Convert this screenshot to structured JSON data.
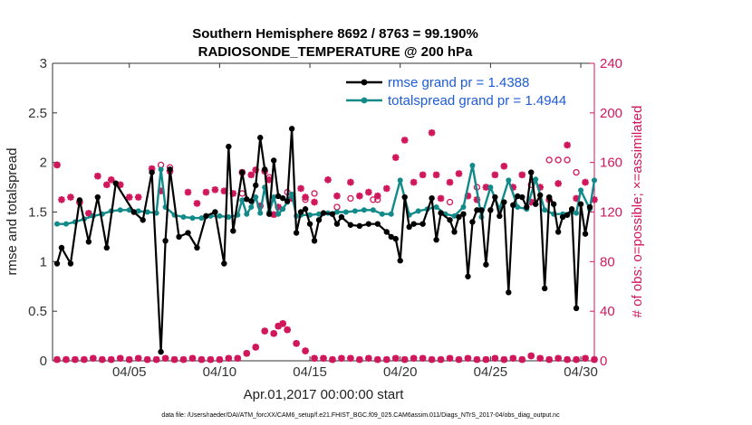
{
  "chart_data": {
    "type": "line",
    "title_line1": "Southern Hemisphere 8692 / 8763 = 99.190%",
    "title_line2": "RADIOSONDE_TEMPERATURE @ 200 hPa",
    "xlabel": "Apr.01,2017 00:00:00 start",
    "ylabel_left": "rmse and totalspread",
    "ylabel_right": "# of obs: o=possible; ×=assimilated",
    "footnote": "data file: /Users/raeder/DAI/ATM_forcXX/CAM6_setup/f.e21.FHIST_BGC.f09_025.CAM6assim.011/Diags_NTrS_2017-04/obs_diag_output.nc",
    "xlim": [
      0.75,
      30.75
    ],
    "ylim_left": [
      0,
      3
    ],
    "ylim_right": [
      0,
      240
    ],
    "x_ticks": [
      {
        "value": 5,
        "label": "04/05"
      },
      {
        "value": 10,
        "label": "04/10"
      },
      {
        "value": 15,
        "label": "04/15"
      },
      {
        "value": 20,
        "label": "04/20"
      },
      {
        "value": 25,
        "label": "04/25"
      },
      {
        "value": 30,
        "label": "04/30"
      }
    ],
    "y_ticks_left": [
      {
        "value": 0,
        "label": "0"
      },
      {
        "value": 0.5,
        "label": "0.5"
      },
      {
        "value": 1,
        "label": "1"
      },
      {
        "value": 1.5,
        "label": "1.5"
      },
      {
        "value": 2,
        "label": "2"
      },
      {
        "value": 2.5,
        "label": "2.5"
      },
      {
        "value": 3,
        "label": "3"
      }
    ],
    "y_ticks_right": [
      {
        "value": 0,
        "label": "0"
      },
      {
        "value": 40,
        "label": "40"
      },
      {
        "value": 80,
        "label": "80"
      },
      {
        "value": 120,
        "label": "120"
      },
      {
        "value": 160,
        "label": "160"
      },
      {
        "value": 200,
        "label": "200"
      },
      {
        "value": 240,
        "label": "240"
      }
    ],
    "colors": {
      "rmse": "#000000",
      "spread": "#138a8a",
      "obs": "#d0175c",
      "legend_text": "#1f5bd6"
    },
    "legend": [
      {
        "series": "rmse",
        "label": "rmse grand pr = 1.4388"
      },
      {
        "series": "spread",
        "label": "totalspread grand pr = 1.4944"
      }
    ],
    "series": [
      {
        "name": "rmse",
        "points": [
          [
            1.0,
            0.98
          ],
          [
            1.25,
            1.14
          ],
          [
            1.75,
            0.98
          ],
          [
            2.25,
            1.62
          ],
          [
            2.75,
            1.2
          ],
          [
            3.25,
            1.65
          ],
          [
            3.75,
            1.14
          ],
          [
            4.25,
            1.79
          ],
          [
            5.25,
            1.5
          ],
          [
            5.75,
            1.42
          ],
          [
            6.25,
            1.9
          ],
          [
            6.75,
            0.09
          ],
          [
            7.0,
            1.21
          ],
          [
            7.25,
            1.93
          ],
          [
            7.75,
            1.25
          ],
          [
            8.25,
            1.29
          ],
          [
            8.75,
            1.14
          ],
          [
            9.25,
            1.46
          ],
          [
            9.75,
            1.5
          ],
          [
            10.25,
            0.98
          ],
          [
            10.5,
            2.16
          ],
          [
            10.75,
            1.31
          ],
          [
            11.25,
            1.9
          ],
          [
            11.5,
            1.63
          ],
          [
            11.75,
            1.61
          ],
          [
            12.0,
            1.77
          ],
          [
            12.25,
            2.25
          ],
          [
            12.5,
            1.93
          ],
          [
            12.75,
            1.48
          ],
          [
            13.0,
            2.02
          ],
          [
            13.25,
            1.66
          ],
          [
            13.5,
            1.64
          ],
          [
            13.75,
            1.61
          ],
          [
            14.0,
            2.34
          ],
          [
            14.25,
            1.29
          ],
          [
            14.5,
            1.5
          ],
          [
            14.75,
            1.53
          ],
          [
            15.0,
            1.38
          ],
          [
            15.25,
            1.21
          ],
          [
            15.5,
            1.42
          ],
          [
            15.75,
            1.49
          ],
          [
            16.25,
            1.48
          ],
          [
            16.5,
            1.38
          ],
          [
            16.75,
            1.45
          ],
          [
            17.25,
            1.37
          ],
          [
            17.75,
            1.36
          ],
          [
            18.25,
            1.38
          ],
          [
            18.75,
            1.38
          ],
          [
            19.25,
            1.3
          ],
          [
            19.5,
            1.25
          ],
          [
            19.75,
            1.23
          ],
          [
            20.0,
            1.01
          ],
          [
            20.25,
            1.65
          ],
          [
            20.5,
            1.35
          ],
          [
            20.75,
            1.38
          ],
          [
            21.25,
            1.38
          ],
          [
            21.75,
            1.64
          ],
          [
            22.0,
            1.22
          ],
          [
            22.25,
            1.49
          ],
          [
            22.75,
            1.42
          ],
          [
            23.0,
            1.3
          ],
          [
            23.25,
            1.45
          ],
          [
            23.5,
            1.48
          ],
          [
            23.75,
            0.85
          ],
          [
            24.0,
            1.4
          ],
          [
            24.25,
            1.52
          ],
          [
            24.5,
            1.52
          ],
          [
            24.75,
            0.97
          ],
          [
            25.0,
            1.52
          ],
          [
            25.25,
            1.65
          ],
          [
            25.5,
            1.46
          ],
          [
            25.75,
            1.6
          ],
          [
            26.0,
            0.69
          ],
          [
            26.25,
            1.57
          ],
          [
            26.5,
            1.66
          ],
          [
            26.75,
            1.65
          ],
          [
            27.0,
            1.55
          ],
          [
            27.25,
            1.9
          ],
          [
            27.5,
            1.58
          ],
          [
            27.75,
            1.67
          ],
          [
            28.0,
            0.73
          ],
          [
            28.25,
            1.65
          ],
          [
            28.5,
            1.58
          ],
          [
            28.75,
            1.3
          ],
          [
            29.0,
            1.45
          ],
          [
            29.25,
            1.47
          ],
          [
            29.5,
            1.53
          ],
          [
            29.75,
            0.53
          ],
          [
            30.0,
            1.58
          ],
          [
            30.25,
            1.28
          ],
          [
            30.5,
            1.55
          ]
        ]
      },
      {
        "name": "totalspread",
        "points": [
          [
            1.0,
            1.38
          ],
          [
            1.5,
            1.38
          ],
          [
            2.0,
            1.4
          ],
          [
            2.5,
            1.43
          ],
          [
            3.0,
            1.46
          ],
          [
            3.5,
            1.48
          ],
          [
            4.0,
            1.51
          ],
          [
            4.5,
            1.52
          ],
          [
            5.0,
            1.52
          ],
          [
            5.5,
            1.51
          ],
          [
            6.0,
            1.5
          ],
          [
            6.5,
            1.49
          ],
          [
            6.75,
            1.93
          ],
          [
            7.0,
            1.55
          ],
          [
            7.5,
            1.47
          ],
          [
            8.0,
            1.45
          ],
          [
            8.5,
            1.44
          ],
          [
            9.0,
            1.44
          ],
          [
            9.5,
            1.46
          ],
          [
            10.0,
            1.46
          ],
          [
            10.5,
            1.45
          ],
          [
            11.0,
            1.47
          ],
          [
            11.25,
            1.62
          ],
          [
            11.5,
            1.48
          ],
          [
            11.75,
            1.55
          ],
          [
            12.0,
            1.65
          ],
          [
            12.25,
            1.49
          ],
          [
            12.5,
            1.75
          ],
          [
            12.75,
            1.5
          ],
          [
            13.0,
            1.65
          ],
          [
            13.25,
            1.48
          ],
          [
            13.5,
            1.53
          ],
          [
            13.75,
            1.6
          ],
          [
            14.0,
            1.68
          ],
          [
            14.25,
            1.46
          ],
          [
            14.5,
            1.47
          ],
          [
            15.0,
            1.47
          ],
          [
            15.5,
            1.48
          ],
          [
            16.0,
            1.49
          ],
          [
            16.5,
            1.5
          ],
          [
            17.0,
            1.5
          ],
          [
            17.5,
            1.51
          ],
          [
            18.0,
            1.52
          ],
          [
            18.5,
            1.52
          ],
          [
            19.0,
            1.48
          ],
          [
            19.5,
            1.48
          ],
          [
            20.0,
            1.82
          ],
          [
            20.5,
            1.47
          ],
          [
            21.0,
            1.51
          ],
          [
            21.5,
            1.53
          ],
          [
            22.0,
            1.55
          ],
          [
            22.5,
            1.48
          ],
          [
            23.0,
            1.46
          ],
          [
            23.5,
            1.55
          ],
          [
            24.0,
            1.97
          ],
          [
            24.5,
            1.45
          ],
          [
            25.0,
            1.75
          ],
          [
            25.5,
            1.53
          ],
          [
            26.0,
            1.82
          ],
          [
            26.5,
            1.55
          ],
          [
            27.0,
            1.53
          ],
          [
            27.5,
            1.83
          ],
          [
            28.0,
            1.52
          ],
          [
            28.5,
            1.48
          ],
          [
            29.0,
            1.48
          ],
          [
            29.5,
            1.5
          ],
          [
            29.75,
            1.49
          ],
          [
            30.0,
            1.72
          ],
          [
            30.5,
            1.53
          ],
          [
            30.75,
            1.82
          ]
        ]
      }
    ],
    "obs_possible_top": [
      [
        1.0,
        158
      ],
      [
        2.25,
        128
      ],
      [
        6.75,
        158
      ],
      [
        7.25,
        156
      ],
      [
        11.25,
        135
      ],
      [
        12.75,
        148
      ],
      [
        13.75,
        136
      ],
      [
        14.75,
        130
      ],
      [
        15.25,
        135
      ],
      [
        16.5,
        124
      ],
      [
        17.25,
        131
      ],
      [
        18.5,
        130
      ],
      [
        18.75,
        130
      ],
      [
        22.75,
        128
      ],
      [
        24.25,
        140
      ],
      [
        27.25,
        142
      ],
      [
        28.25,
        162
      ],
      [
        28.75,
        162
      ],
      [
        29.25,
        162
      ],
      [
        29.75,
        152
      ]
    ],
    "obs_assim_top": [
      [
        1.0,
        158
      ],
      [
        1.25,
        130
      ],
      [
        1.75,
        132
      ],
      [
        2.25,
        128
      ],
      [
        2.75,
        119
      ],
      [
        3.25,
        149
      ],
      [
        3.75,
        142
      ],
      [
        4.0,
        146
      ],
      [
        4.5,
        142
      ],
      [
        5.0,
        132
      ],
      [
        5.5,
        132
      ],
      [
        6.25,
        155
      ],
      [
        6.75,
        137
      ],
      [
        7.25,
        153
      ],
      [
        8.25,
        136
      ],
      [
        8.75,
        127
      ],
      [
        9.25,
        136
      ],
      [
        9.75,
        138
      ],
      [
        10.25,
        137
      ],
      [
        10.75,
        135
      ],
      [
        11.25,
        152
      ],
      [
        11.75,
        150
      ],
      [
        12.0,
        154
      ],
      [
        12.25,
        125
      ],
      [
        12.5,
        153
      ],
      [
        12.75,
        146
      ],
      [
        13.0,
        118
      ],
      [
        13.25,
        124
      ],
      [
        14.0,
        131
      ],
      [
        14.5,
        139
      ],
      [
        14.75,
        132
      ],
      [
        15.25,
        128
      ],
      [
        16.0,
        146
      ],
      [
        16.5,
        133
      ],
      [
        17.25,
        144
      ],
      [
        17.75,
        133
      ],
      [
        18.25,
        136
      ],
      [
        18.75,
        133
      ],
      [
        19.25,
        139
      ],
      [
        19.75,
        164
      ],
      [
        20.25,
        178
      ],
      [
        20.75,
        144
      ],
      [
        21.25,
        150
      ],
      [
        21.75,
        184
      ],
      [
        22.0,
        150
      ],
      [
        22.25,
        131
      ],
      [
        22.75,
        144
      ],
      [
        23.25,
        151
      ],
      [
        23.75,
        133
      ],
      [
        24.25,
        130
      ],
      [
        24.75,
        140
      ],
      [
        25.25,
        150
      ],
      [
        25.75,
        157
      ],
      [
        26.25,
        140
      ],
      [
        26.75,
        150
      ],
      [
        27.25,
        128
      ],
      [
        27.75,
        140
      ],
      [
        28.25,
        130
      ],
      [
        28.75,
        143
      ],
      [
        29.25,
        174
      ],
      [
        29.75,
        131
      ],
      [
        30.25,
        144
      ],
      [
        30.75,
        130
      ]
    ],
    "obs_bottom": [
      [
        1.0,
        1
      ],
      [
        1.5,
        1
      ],
      [
        2.0,
        1
      ],
      [
        2.5,
        1
      ],
      [
        3.0,
        2
      ],
      [
        3.5,
        1
      ],
      [
        4.0,
        1
      ],
      [
        4.5,
        2
      ],
      [
        5.0,
        1
      ],
      [
        5.5,
        2
      ],
      [
        6.0,
        1
      ],
      [
        6.5,
        1
      ],
      [
        7.0,
        2
      ],
      [
        7.5,
        1
      ],
      [
        8.0,
        1
      ],
      [
        8.5,
        2
      ],
      [
        9.0,
        1
      ],
      [
        9.5,
        1
      ],
      [
        10.0,
        1
      ],
      [
        10.5,
        2
      ],
      [
        11.0,
        2
      ],
      [
        11.5,
        6
      ],
      [
        12.0,
        11
      ],
      [
        12.5,
        24
      ],
      [
        13.0,
        22
      ],
      [
        13.25,
        28
      ],
      [
        13.5,
        30
      ],
      [
        13.75,
        25
      ],
      [
        14.25,
        14
      ],
      [
        14.75,
        8
      ],
      [
        15.25,
        2
      ],
      [
        15.75,
        2
      ],
      [
        16.25,
        1
      ],
      [
        16.75,
        2
      ],
      [
        17.25,
        2
      ],
      [
        17.75,
        1
      ],
      [
        18.25,
        2
      ],
      [
        18.75,
        1
      ],
      [
        19.25,
        1
      ],
      [
        19.75,
        2
      ],
      [
        20.25,
        1
      ],
      [
        20.75,
        2
      ],
      [
        21.25,
        2
      ],
      [
        21.75,
        1
      ],
      [
        22.25,
        1
      ],
      [
        22.75,
        2
      ],
      [
        23.25,
        1
      ],
      [
        23.75,
        2
      ],
      [
        24.25,
        1
      ],
      [
        24.75,
        1
      ],
      [
        25.25,
        2
      ],
      [
        25.75,
        1
      ],
      [
        26.25,
        2
      ],
      [
        26.75,
        1
      ],
      [
        27.25,
        4
      ],
      [
        27.75,
        2
      ],
      [
        28.25,
        1
      ],
      [
        28.75,
        2
      ],
      [
        29.25,
        1
      ],
      [
        29.75,
        1
      ],
      [
        30.25,
        2
      ],
      [
        30.75,
        1
      ]
    ]
  }
}
